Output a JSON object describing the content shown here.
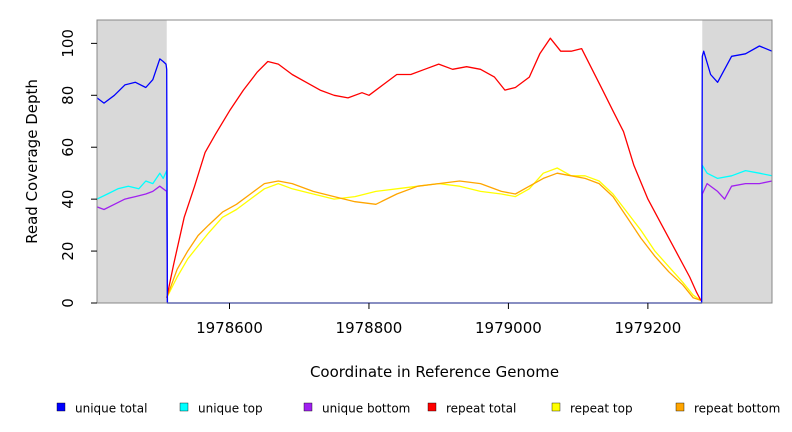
{
  "chart_data": {
    "type": "line",
    "xlabel": "Coordinate in Reference Genome",
    "ylabel": "Read Coverage Depth",
    "xlim": [
      1978410,
      1979378
    ],
    "ylim": [
      0,
      109
    ],
    "xticks": [
      1978600,
      1978800,
      1979000,
      1979200
    ],
    "yticks": [
      0,
      20,
      40,
      60,
      80,
      100
    ],
    "shaded_regions": [
      [
        1978410,
        1978510
      ],
      [
        1979278,
        1979378
      ]
    ],
    "shade_color": "#d9d9d9",
    "grid": false,
    "legend_position": "bottom",
    "series": [
      {
        "name": "unique total",
        "color": "#0000ff",
        "x": [
          1978410,
          1978420,
          1978435,
          1978450,
          1978465,
          1978480,
          1978490,
          1978500,
          1978505,
          1978509,
          1978510,
          1978511,
          1979277,
          1979278,
          1979280,
          1979290,
          1979300,
          1979320,
          1979340,
          1979360,
          1979378
        ],
        "y": [
          79,
          77,
          80,
          84,
          85,
          83,
          86,
          94,
          93,
          92,
          90,
          0,
          0,
          95,
          97,
          88,
          85,
          95,
          96,
          99,
          97
        ]
      },
      {
        "name": "unique top",
        "color": "#00ffff",
        "x": [
          1978410,
          1978425,
          1978440,
          1978455,
          1978470,
          1978480,
          1978490,
          1978500,
          1978505,
          1978510,
          1978511,
          1979277,
          1979278,
          1979285,
          1979300,
          1979320,
          1979340,
          1979360,
          1979378
        ],
        "y": [
          40,
          42,
          44,
          45,
          44,
          47,
          46,
          50,
          48,
          51,
          0,
          0,
          53,
          50,
          48,
          49,
          51,
          50,
          49
        ]
      },
      {
        "name": "unique bottom",
        "color": "#a020f0",
        "x": [
          1978410,
          1978420,
          1978435,
          1978450,
          1978465,
          1978480,
          1978490,
          1978500,
          1978505,
          1978510,
          1978511,
          1979277,
          1979278,
          1979285,
          1979300,
          1979310,
          1979320,
          1979340,
          1979360,
          1979378
        ],
        "y": [
          37,
          36,
          38,
          40,
          41,
          42,
          43,
          45,
          44,
          43,
          0,
          0,
          42,
          46,
          43,
          40,
          45,
          46,
          46,
          47
        ]
      },
      {
        "name": "repeat total",
        "color": "#ff0000",
        "x": [
          1978510,
          1978520,
          1978535,
          1978550,
          1978565,
          1978580,
          1978600,
          1978620,
          1978640,
          1978655,
          1978670,
          1978690,
          1978710,
          1978730,
          1978750,
          1978770,
          1978790,
          1978800,
          1978820,
          1978840,
          1978860,
          1978880,
          1978900,
          1978920,
          1978940,
          1978960,
          1978980,
          1978995,
          1979010,
          1979030,
          1979045,
          1979060,
          1979075,
          1979090,
          1979105,
          1979120,
          1979135,
          1979150,
          1979165,
          1979180,
          1979200,
          1979220,
          1979240,
          1979260,
          1979270,
          1979276
        ],
        "y": [
          2,
          15,
          33,
          45,
          58,
          65,
          74,
          82,
          89,
          93,
          92,
          88,
          85,
          82,
          80,
          79,
          81,
          80,
          84,
          88,
          88,
          90,
          92,
          90,
          91,
          90,
          87,
          82,
          83,
          87,
          96,
          102,
          97,
          97,
          98,
          90,
          82,
          74,
          66,
          53,
          40,
          30,
          20,
          10,
          4,
          1
        ]
      },
      {
        "name": "repeat top",
        "color": "#ffff00",
        "x": [
          1978510,
          1978525,
          1978540,
          1978555,
          1978570,
          1978590,
          1978610,
          1978630,
          1978650,
          1978670,
          1978690,
          1978720,
          1978750,
          1978780,
          1978810,
          1978840,
          1978870,
          1978900,
          1978930,
          1978960,
          1978990,
          1979010,
          1979030,
          1979050,
          1979070,
          1979090,
          1979110,
          1979130,
          1979150,
          1979170,
          1979190,
          1979210,
          1979230,
          1979250,
          1979265,
          1979276
        ],
        "y": [
          2,
          10,
          17,
          22,
          27,
          33,
          36,
          40,
          44,
          46,
          44,
          42,
          40,
          41,
          43,
          44,
          45,
          46,
          45,
          43,
          42,
          41,
          44,
          50,
          52,
          49,
          49,
          47,
          42,
          35,
          28,
          20,
          14,
          8,
          3,
          1
        ]
      },
      {
        "name": "repeat bottom",
        "color": "#ffa500",
        "x": [
          1978510,
          1978525,
          1978540,
          1978555,
          1978570,
          1978590,
          1978610,
          1978630,
          1978650,
          1978670,
          1978690,
          1978720,
          1978750,
          1978780,
          1978810,
          1978840,
          1978870,
          1978900,
          1978930,
          1978960,
          1978990,
          1979010,
          1979030,
          1979050,
          1979070,
          1979090,
          1979110,
          1979130,
          1979150,
          1979170,
          1979190,
          1979210,
          1979230,
          1979250,
          1979265,
          1979276
        ],
        "y": [
          2,
          13,
          20,
          26,
          30,
          35,
          38,
          42,
          46,
          47,
          46,
          43,
          41,
          39,
          38,
          42,
          45,
          46,
          47,
          46,
          43,
          42,
          45,
          48,
          50,
          49,
          48,
          46,
          41,
          33,
          25,
          18,
          12,
          7,
          2,
          1
        ]
      }
    ]
  }
}
